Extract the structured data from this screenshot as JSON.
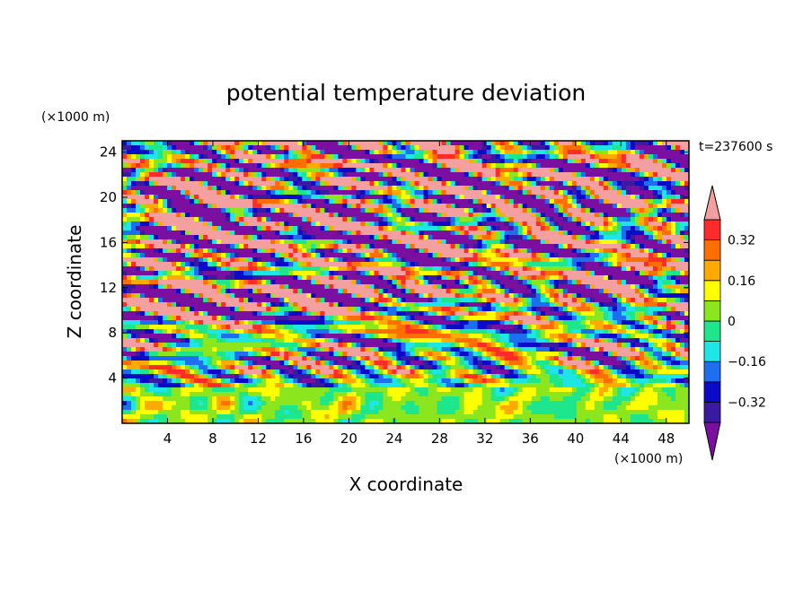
{
  "chart_data": {
    "type": "heatmap",
    "title": "potential temperature deviation",
    "xlabel": "X coordinate",
    "ylabel": "Z coordinate",
    "x_unit": "(×1000 m)",
    "y_unit": "(×1000 m)",
    "time_label": "t=237600 s",
    "xlim": [
      0,
      50
    ],
    "ylim": [
      0,
      25
    ],
    "x_ticks": [
      4,
      8,
      12,
      16,
      20,
      24,
      28,
      32,
      36,
      40,
      44,
      48
    ],
    "y_ticks": [
      4,
      8,
      12,
      16,
      20,
      24
    ],
    "colorbar": {
      "levels": [
        -0.4,
        -0.32,
        -0.24,
        -0.16,
        -0.08,
        0,
        0.08,
        0.16,
        0.24,
        0.32,
        0.4
      ],
      "labels": [
        "0.32",
        "0.16",
        "0",
        "−0.16",
        "−0.32"
      ],
      "label_values": [
        0.32,
        0.16,
        0,
        -0.16,
        -0.32
      ],
      "colors": [
        "#7a0fa0",
        "#3a1aa0",
        "#0a0ac8",
        "#1e6ef0",
        "#1ee6e6",
        "#1ee68c",
        "#8ce61e",
        "#ffff00",
        "#ffaa00",
        "#ff6e00",
        "#ff2a2a",
        "#f5a0a0"
      ],
      "extend": "both"
    }
  }
}
